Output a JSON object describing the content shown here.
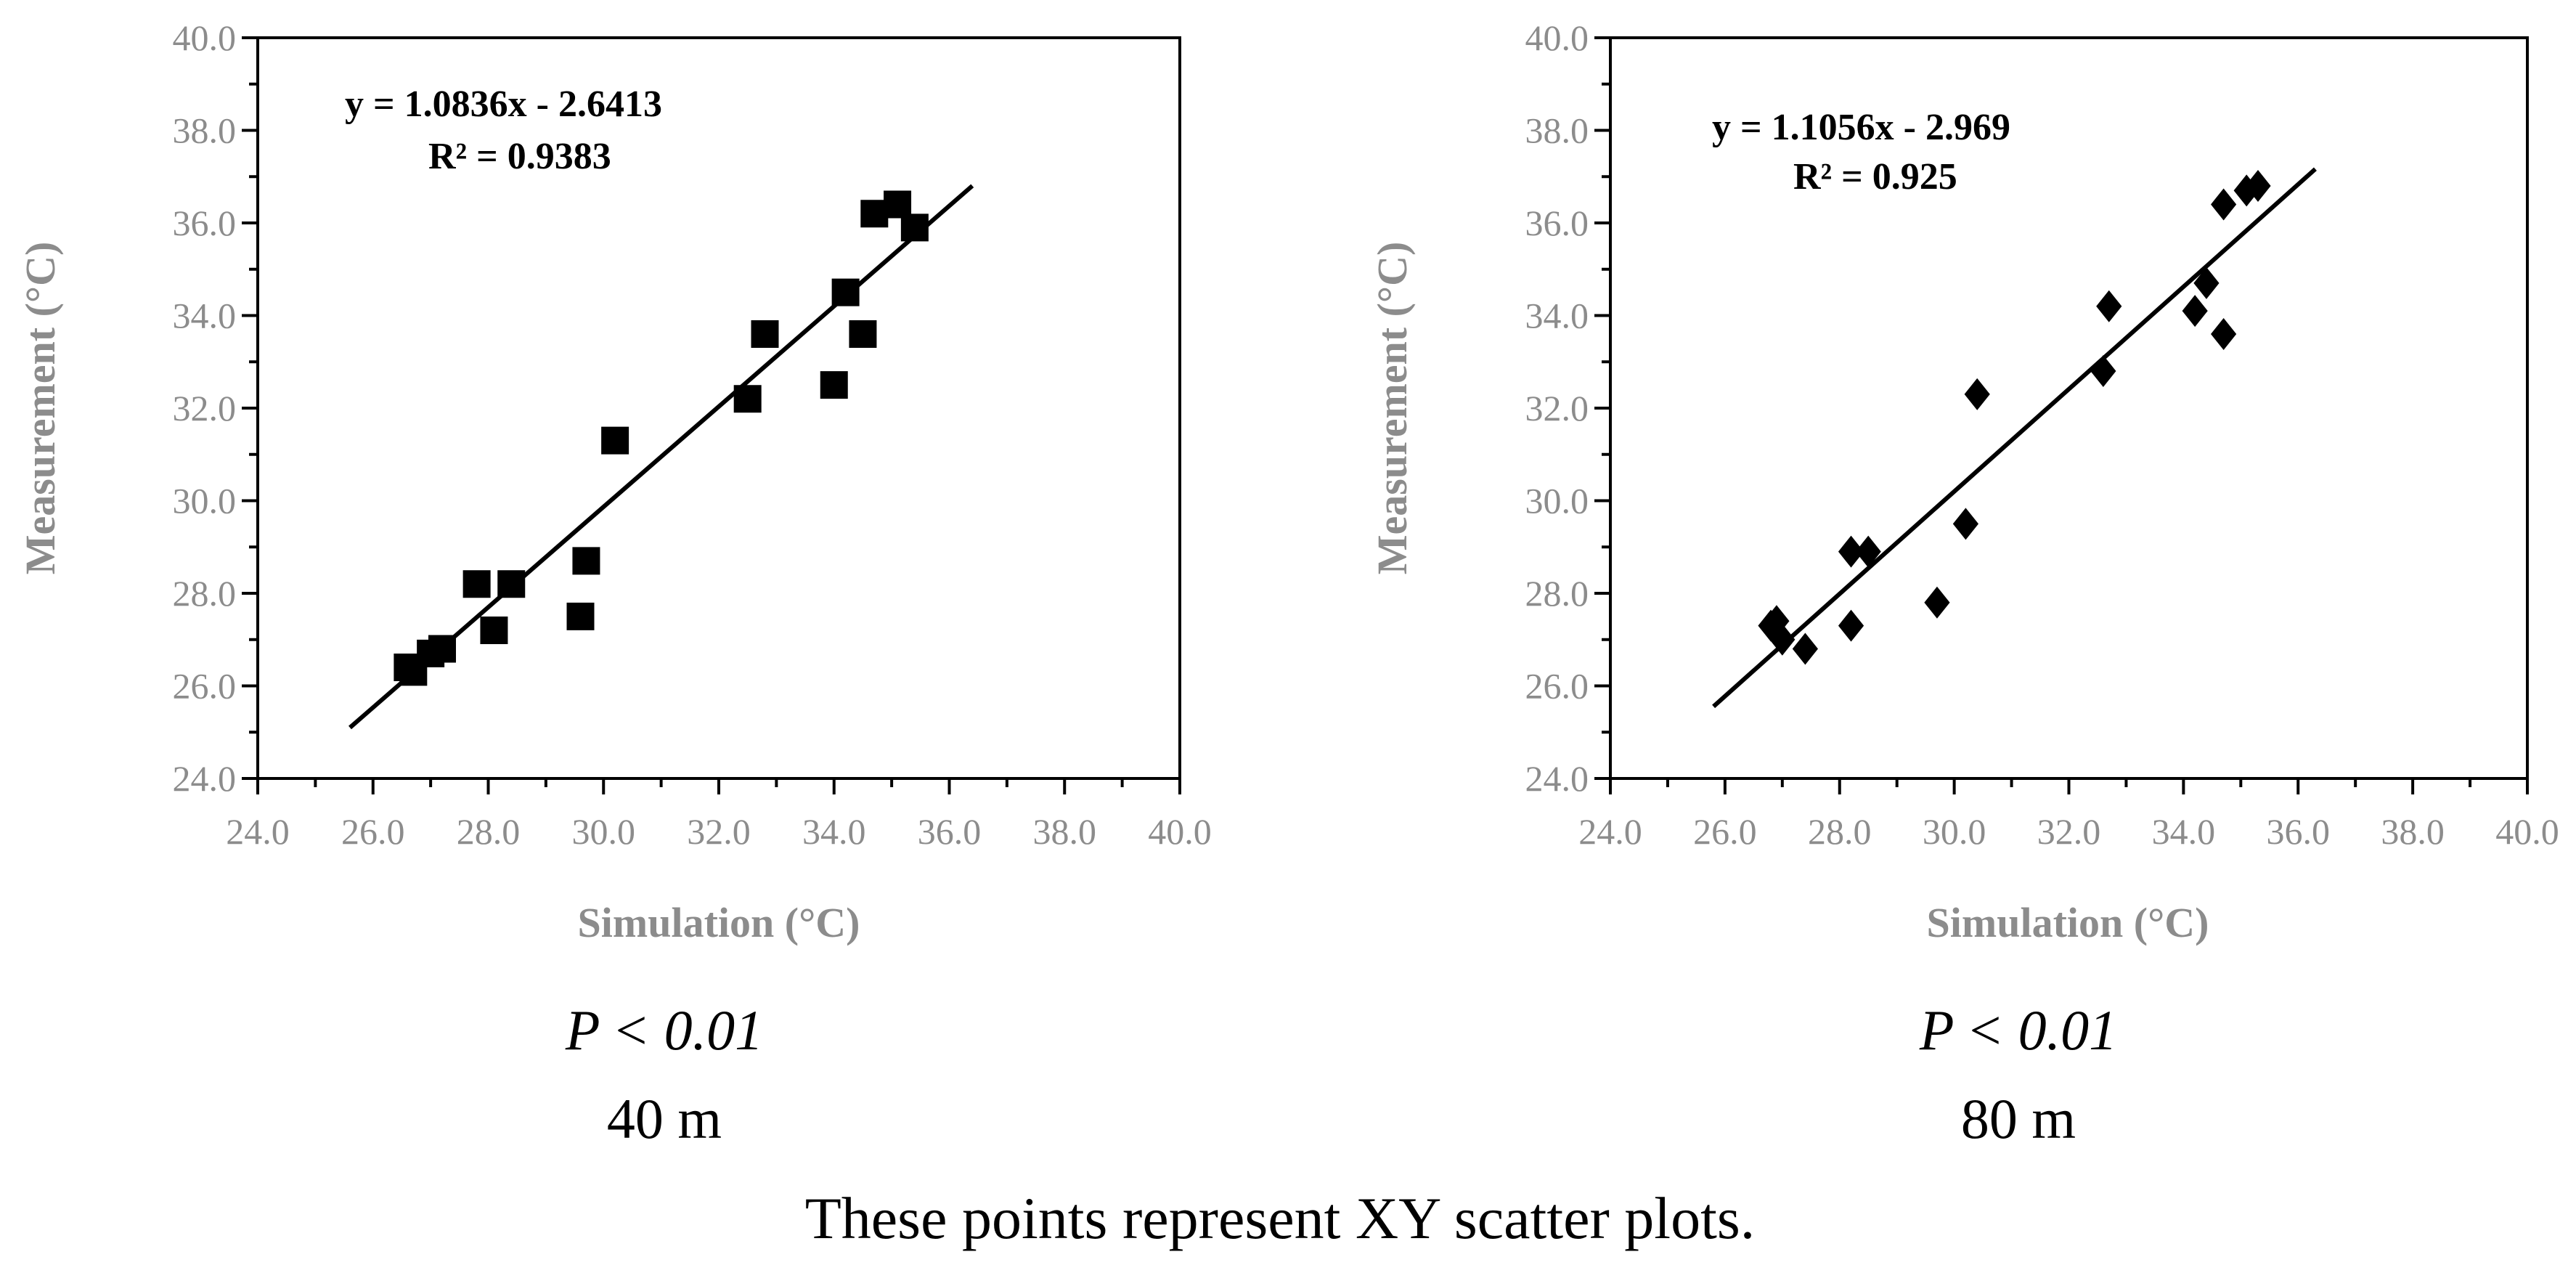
{
  "chart_data": [
    {
      "type": "scatter",
      "marker": "square",
      "xlabel": "Simulation (°C)",
      "ylabel": "Measurement (°C)",
      "xlim": [
        24,
        40
      ],
      "ylim": [
        24,
        40
      ],
      "ticks": [
        "24.0",
        "26.0",
        "28.0",
        "30.0",
        "32.0",
        "34.0",
        "36.0",
        "38.0",
        "40.0"
      ],
      "equation": "y = 1.0836x - 2.6413",
      "r2": "R² = 0.9383",
      "trendline": {
        "slope": 1.0836,
        "intercept": -2.6413,
        "x_range": [
          25.6,
          36.4
        ]
      },
      "x": [
        26.6,
        26.7,
        27.0,
        27.2,
        27.8,
        28.1,
        28.4,
        29.6,
        29.7,
        30.2,
        32.5,
        32.8,
        34.0,
        34.2,
        34.5,
        34.7,
        35.1,
        35.4
      ],
      "y": [
        26.4,
        26.3,
        26.7,
        26.8,
        28.2,
        27.2,
        28.2,
        27.5,
        28.7,
        31.3,
        32.2,
        33.6,
        32.5,
        34.5,
        33.6,
        36.2,
        36.4,
        35.9
      ],
      "p_value": "< 0.01",
      "p_symbol": "P",
      "panel_label": "40 m"
    },
    {
      "type": "scatter",
      "marker": "diamond",
      "xlabel": "Simulation (°C)",
      "ylabel": "Measurement (°C)",
      "xlim": [
        24,
        40
      ],
      "ylim": [
        24,
        40
      ],
      "ticks": [
        "24.0",
        "26.0",
        "28.0",
        "30.0",
        "32.0",
        "34.0",
        "36.0",
        "38.0",
        "40.0"
      ],
      "equation": "y = 1.1056x - 2.969",
      "r2": "R² = 0.925",
      "trendline": {
        "slope": 1.1056,
        "intercept": -2.969,
        "x_range": [
          25.8,
          36.3
        ]
      },
      "x": [
        26.8,
        26.9,
        27.0,
        27.4,
        28.2,
        28.2,
        28.5,
        29.7,
        30.2,
        30.4,
        32.6,
        32.7,
        34.2,
        34.4,
        34.7,
        34.7,
        35.1,
        35.3
      ],
      "y": [
        27.3,
        27.4,
        27.0,
        26.8,
        27.3,
        28.9,
        28.9,
        27.8,
        29.5,
        32.3,
        32.8,
        34.2,
        34.1,
        34.7,
        36.4,
        33.6,
        36.7,
        36.8
      ],
      "p_value": "< 0.01",
      "p_symbol": "P",
      "panel_label": "80 m"
    }
  ],
  "caption": "These points represent XY scatter plots."
}
